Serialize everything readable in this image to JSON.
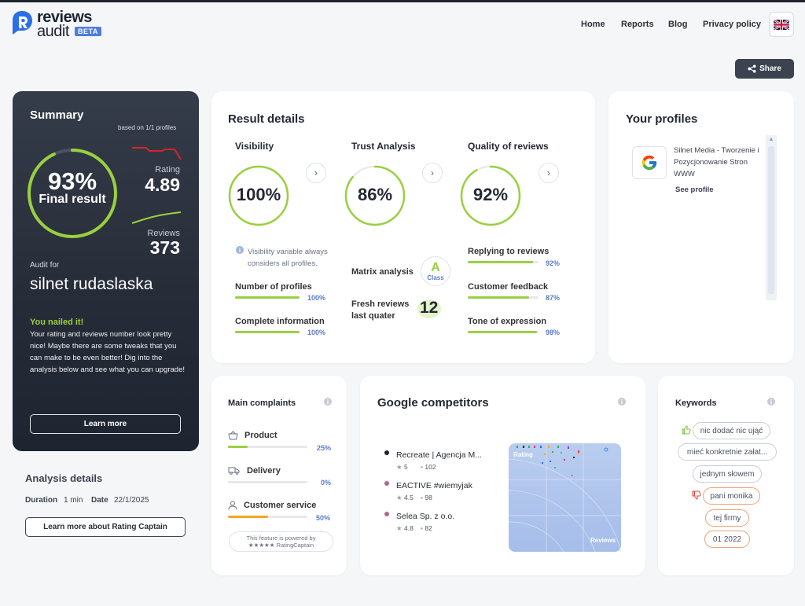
{
  "header": {
    "logo_line1": "reviews",
    "logo_line2": "audit",
    "beta": "BETA",
    "nav": [
      "Home",
      "Reports",
      "Blog",
      "Privacy policy"
    ],
    "share_label": "Share"
  },
  "summary": {
    "title": "Summary",
    "based_on": "based on 1/1 profiles",
    "final_percent": "93%",
    "final_label": "Final result",
    "final_value": 0.93,
    "rating_label": "Rating",
    "rating_value": "4.89",
    "reviews_label": "Reviews",
    "reviews_value": "373",
    "audit_for_label": "Audit for",
    "audit_for_name": "silnet rudaslaska",
    "nailed_title": "You nailed it!",
    "nailed_text": "Your rating and reviews number look pretty nice! Maybe there are some tweaks that you can make to be even better! Dig into the analysis below and see what you can upgrade!",
    "learn_more": "Learn more",
    "colors": {
      "accent": "#9ad03f",
      "rating_line": "#d8232a"
    }
  },
  "analysis": {
    "title": "Analysis details",
    "duration_label": "Duration",
    "duration_value": "1 min",
    "date_label": "Date",
    "date_value": "22/1/2025",
    "button": "Learn more about Rating Captain"
  },
  "result": {
    "title": "Result details",
    "visibility": {
      "title": "Visibility",
      "percent": "100%",
      "value": 1.0,
      "note": "Visibility variable always considers all profiles.",
      "items": [
        {
          "label": "Number of profiles",
          "pct": "100%",
          "value": 1.0
        },
        {
          "label": "Complete information",
          "pct": "100%",
          "value": 1.0
        }
      ]
    },
    "trust": {
      "title": "Trust Analysis",
      "percent": "86%",
      "value": 0.86,
      "matrix_label": "Matrix analysis",
      "matrix_grade": "A",
      "matrix_class": "Class",
      "fresh_label": "Fresh reviews last quater",
      "fresh_value": "12"
    },
    "quality": {
      "title": "Quality of reviews",
      "percent": "92%",
      "value": 0.92,
      "items": [
        {
          "label": "Replying to reviews",
          "pct": "92%",
          "value": 0.92
        },
        {
          "label": "Customer feedback",
          "pct": "87%",
          "value": 0.87
        },
        {
          "label": "Tone of expression",
          "pct": "98%",
          "value": 0.98
        }
      ]
    }
  },
  "profiles": {
    "title": "Your profiles",
    "items": [
      {
        "name": "Silnet Media - Tworzenie i Pozycjonowanie Stron WWW",
        "link": "See profile",
        "icon": "google-icon"
      }
    ]
  },
  "complaints": {
    "title": "Main complaints",
    "items": [
      {
        "label": "Product",
        "pct": "25%",
        "value": 0.25,
        "color": "#9ad03f",
        "icon": "basket-icon"
      },
      {
        "label": "Delivery",
        "pct": "0%",
        "value": 0.0,
        "color": "#9ad03f",
        "icon": "truck-icon"
      },
      {
        "label": "Customer service",
        "pct": "50%",
        "value": 0.5,
        "color": "#f5a623",
        "icon": "person-icon"
      }
    ],
    "powered_line1": "This feature is powered by",
    "powered_line2": "★★★★★ RatingCaptain"
  },
  "competitors": {
    "title": "Google competitors",
    "items": [
      {
        "name": "Recreate | Agencja M...",
        "rating": "5",
        "reviews": "102",
        "color": "#1d2330"
      },
      {
        "name": "EACTIVE #wiemyjak",
        "rating": "4.5",
        "reviews": "98",
        "color": "#b5658f"
      },
      {
        "name": "Selea Sp. z o.o.",
        "rating": "4.8",
        "reviews": "82",
        "color": "#b5658f"
      }
    ],
    "chart_label_y": "Rating",
    "chart_label_x": "Reviews"
  },
  "keywords": {
    "title": "Keywords",
    "positive": [
      "nic dodać nic ująć",
      "mieć konkretnie załat...",
      "jednym słowem"
    ],
    "negative": [
      "pani monika",
      "tej firmy",
      "01 2022"
    ]
  }
}
